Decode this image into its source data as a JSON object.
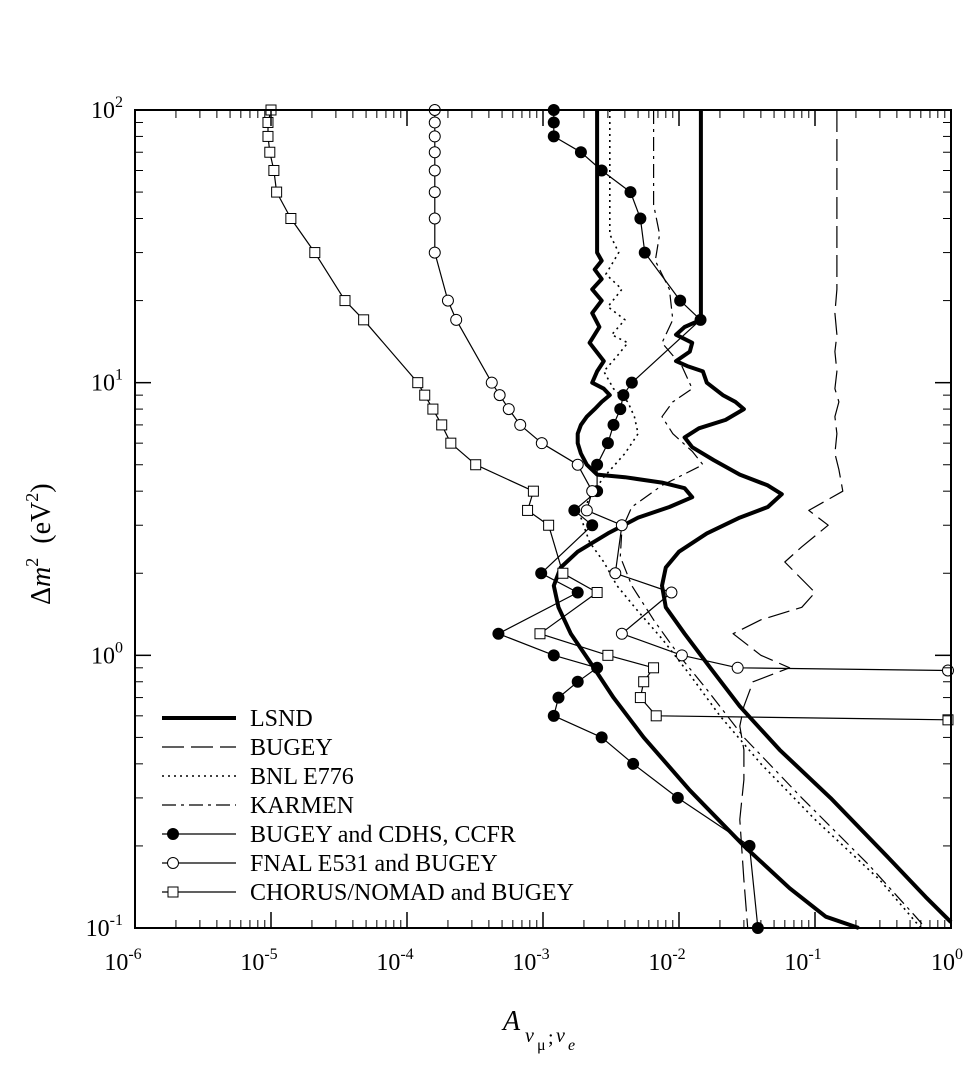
{
  "chart_data": {
    "type": "line",
    "title": "",
    "xlabel": {
      "main": "A",
      "sub_1": "ν",
      "sub_2": "μ",
      "sub_sep": ";",
      "sub_3": "ν",
      "sub_4": "e"
    },
    "ylabel": {
      "main": "Δ",
      "var": "m",
      "sup": "2",
      "units_open": "  (eV",
      "units_sup": "2",
      "units_close": ")"
    },
    "x_scale": "log",
    "y_scale": "log",
    "xlim": [
      1e-06,
      1
    ],
    "ylim": [
      0.1,
      100
    ],
    "grid": false,
    "legend_position": "bottom-left",
    "x_ticks": [
      {
        "value": 1e-06,
        "base": "10",
        "exp": "-6"
      },
      {
        "value": 1e-05,
        "base": "10",
        "exp": "-5"
      },
      {
        "value": 0.0001,
        "base": "10",
        "exp": "-4"
      },
      {
        "value": 0.001,
        "base": "10",
        "exp": "-3"
      },
      {
        "value": 0.01,
        "base": "10",
        "exp": "-2"
      },
      {
        "value": 0.1,
        "base": "10",
        "exp": "-1"
      },
      {
        "value": 1,
        "base": "10",
        "exp": "0"
      }
    ],
    "y_ticks": [
      {
        "value": 0.1,
        "base": "10",
        "exp": "-1"
      },
      {
        "value": 1,
        "base": "10",
        "exp": "0"
      },
      {
        "value": 10,
        "base": "10",
        "exp": "1"
      },
      {
        "value": 100,
        "base": "10",
        "exp": "2"
      }
    ],
    "series": [
      {
        "name": "LSND",
        "style": "thick",
        "marker": "none",
        "segments": [
          [
            [
              0.0025,
              100
            ],
            [
              0.0025,
              30
            ],
            [
              0.0027,
              28
            ],
            [
              0.0024,
              26
            ],
            [
              0.0027,
              24
            ],
            [
              0.0023,
              22
            ],
            [
              0.0027,
              20
            ],
            [
              0.0023,
              18
            ],
            [
              0.0026,
              16
            ],
            [
              0.0022,
              14
            ],
            [
              0.0028,
              12
            ],
            [
              0.0025,
              11
            ],
            [
              0.0023,
              10
            ],
            [
              0.0028,
              9.5
            ],
            [
              0.0031,
              9
            ],
            [
              0.0027,
              8.5
            ],
            [
              0.0024,
              8
            ],
            [
              0.0021,
              7.5
            ],
            [
              0.0019,
              7
            ],
            [
              0.0018,
              6.5
            ],
            [
              0.0018,
              6
            ],
            [
              0.0019,
              5.5
            ],
            [
              0.0021,
              5
            ],
            [
              0.0025,
              4.6
            ],
            [
              0.004,
              4.5
            ],
            [
              0.0075,
              4.3
            ],
            [
              0.011,
              4.1
            ],
            [
              0.0125,
              3.8
            ],
            [
              0.0085,
              3.5
            ],
            [
              0.005,
              3.2
            ],
            [
              0.003,
              2.8
            ],
            [
              0.0018,
              2.4
            ],
            [
              0.00135,
              2.1
            ],
            [
              0.0012,
              1.8
            ],
            [
              0.0013,
              1.5
            ],
            [
              0.0016,
              1.2
            ],
            [
              0.0022,
              0.95
            ],
            [
              0.0033,
              0.7
            ],
            [
              0.0055,
              0.5
            ],
            [
              0.012,
              0.32
            ],
            [
              0.03,
              0.2
            ],
            [
              0.065,
              0.14
            ],
            [
              0.12,
              0.11
            ],
            [
              0.21,
              0.1
            ]
          ],
          [
            [
              0.0145,
              100
            ],
            [
              0.0145,
              17
            ],
            [
              0.011,
              16
            ],
            [
              0.0095,
              15
            ],
            [
              0.0125,
              14
            ],
            [
              0.012,
              13
            ],
            [
              0.0095,
              12
            ],
            [
              0.0115,
              11.5
            ],
            [
              0.015,
              11
            ],
            [
              0.016,
              10
            ],
            [
              0.021,
              9
            ],
            [
              0.026,
              8.5
            ],
            [
              0.03,
              8
            ],
            [
              0.022,
              7.3
            ],
            [
              0.014,
              6.8
            ],
            [
              0.011,
              6.3
            ],
            [
              0.0125,
              5.8
            ],
            [
              0.018,
              5.2
            ],
            [
              0.028,
              4.6
            ],
            [
              0.045,
              4.2
            ],
            [
              0.057,
              3.9
            ],
            [
              0.045,
              3.5
            ],
            [
              0.028,
              3.2
            ],
            [
              0.016,
              2.8
            ],
            [
              0.01,
              2.4
            ],
            [
              0.008,
              2.1
            ],
            [
              0.0075,
              1.8
            ],
            [
              0.008,
              1.5
            ],
            [
              0.011,
              1.2
            ],
            [
              0.017,
              0.9
            ],
            [
              0.028,
              0.65
            ],
            [
              0.055,
              0.45
            ],
            [
              0.13,
              0.3
            ],
            [
              0.35,
              0.18
            ],
            [
              0.65,
              0.13
            ],
            [
              1.0,
              0.105
            ]
          ]
        ]
      },
      {
        "name": "BUGEY",
        "style": "dash-long",
        "marker": "none",
        "segments": [
          [
            [
              0.145,
              100
            ],
            [
              0.145,
              22
            ],
            [
              0.14,
              18
            ],
            [
              0.145,
              15
            ],
            [
              0.14,
              13
            ],
            [
              0.145,
              11
            ],
            [
              0.14,
              9.5
            ],
            [
              0.15,
              8.5
            ],
            [
              0.14,
              7.5
            ],
            [
              0.145,
              6.5
            ],
            [
              0.14,
              5.5
            ],
            [
              0.15,
              4.8
            ],
            [
              0.16,
              4.0
            ],
            [
              0.09,
              3.4
            ],
            [
              0.125,
              3.0
            ],
            [
              0.08,
              2.5
            ],
            [
              0.06,
              2.2
            ],
            [
              0.1,
              1.7
            ],
            [
              0.08,
              1.5
            ],
            [
              0.04,
              1.35
            ],
            [
              0.025,
              1.2
            ],
            [
              0.04,
              1.0
            ],
            [
              0.065,
              0.9
            ],
            [
              0.035,
              0.8
            ],
            [
              0.03,
              0.65
            ],
            [
              0.028,
              0.55
            ],
            [
              0.03,
              0.45
            ],
            [
              0.03,
              0.35
            ],
            [
              0.028,
              0.25
            ],
            [
              0.03,
              0.15
            ],
            [
              0.032,
              0.1
            ]
          ]
        ]
      },
      {
        "name": "BNL E776",
        "style": "dotted",
        "marker": "none",
        "segments": [
          [
            [
              0.0031,
              100
            ],
            [
              0.0031,
              35
            ],
            [
              0.0036,
              30
            ],
            [
              0.0029,
              25
            ],
            [
              0.0038,
              22
            ],
            [
              0.003,
              19
            ],
            [
              0.004,
              17
            ],
            [
              0.0032,
              15
            ],
            [
              0.0042,
              14
            ],
            [
              0.0035,
              12.5
            ],
            [
              0.0028,
              11
            ],
            [
              0.0033,
              9.5
            ],
            [
              0.0042,
              8.5
            ],
            [
              0.0047,
              7.5
            ],
            [
              0.005,
              6.5
            ],
            [
              0.004,
              5.5
            ],
            [
              0.0028,
              4.5
            ],
            [
              0.0022,
              3.8
            ],
            [
              0.0019,
              3.2
            ],
            [
              0.0022,
              2.6
            ],
            [
              0.0028,
              2.2
            ],
            [
              0.0035,
              1.8
            ],
            [
              0.005,
              1.45
            ],
            [
              0.0075,
              1.15
            ],
            [
              0.012,
              0.85
            ],
            [
              0.02,
              0.6
            ],
            [
              0.04,
              0.4
            ],
            [
              0.1,
              0.25
            ],
            [
              0.3,
              0.15
            ],
            [
              0.6,
              0.1
            ]
          ]
        ]
      },
      {
        "name": "KARMEN",
        "style": "dashdot",
        "marker": "none",
        "segments": [
          [
            [
              0.0065,
              100
            ],
            [
              0.0065,
              45
            ],
            [
              0.0072,
              35
            ],
            [
              0.0067,
              28
            ],
            [
              0.0085,
              22
            ],
            [
              0.009,
              17
            ],
            [
              0.0075,
              14
            ],
            [
              0.0105,
              11.5
            ],
            [
              0.0125,
              9.5
            ],
            [
              0.009,
              8.5
            ],
            [
              0.0075,
              7.5
            ],
            [
              0.009,
              6.5
            ],
            [
              0.0125,
              5.6
            ],
            [
              0.015,
              5.0
            ],
            [
              0.0075,
              4.2
            ],
            [
              0.0045,
              3.5
            ],
            [
              0.0038,
              2.9
            ],
            [
              0.0037,
              2.3
            ],
            [
              0.0045,
              1.8
            ],
            [
              0.0065,
              1.35
            ],
            [
              0.01,
              1.0
            ],
            [
              0.016,
              0.75
            ],
            [
              0.03,
              0.5
            ],
            [
              0.08,
              0.3
            ],
            [
              0.25,
              0.17
            ],
            [
              0.55,
              0.11
            ],
            [
              0.65,
              0.1
            ]
          ]
        ]
      },
      {
        "name": "BUGEY and CDHS, CCFR",
        "style": "solid-thin",
        "marker": "filled-circle",
        "segments": [
          [
            [
              0.0012,
              100
            ],
            [
              0.0012,
              90
            ],
            [
              0.0012,
              80
            ],
            [
              0.0019,
              70
            ],
            [
              0.0027,
              60
            ],
            [
              0.0044,
              50
            ],
            [
              0.0052,
              40
            ],
            [
              0.0056,
              30
            ],
            [
              0.0102,
              20
            ],
            [
              0.0144,
              17
            ],
            [
              0.0045,
              10
            ],
            [
              0.0039,
              9
            ],
            [
              0.0037,
              8
            ],
            [
              0.0033,
              7
            ],
            [
              0.003,
              6
            ],
            [
              0.0025,
              5
            ],
            [
              0.0025,
              4
            ],
            [
              0.0017,
              3.4
            ],
            [
              0.0023,
              3
            ],
            [
              0.00097,
              2
            ],
            [
              0.0018,
              1.7
            ],
            [
              0.00047,
              1.2
            ],
            [
              0.0012,
              1.0
            ],
            [
              0.0025,
              0.9
            ],
            [
              0.0018,
              0.8
            ],
            [
              0.0013,
              0.7
            ],
            [
              0.0012,
              0.6
            ],
            [
              0.0027,
              0.5
            ],
            [
              0.0046,
              0.4
            ],
            [
              0.0098,
              0.3
            ],
            [
              0.033,
              0.2
            ],
            [
              0.038,
              0.1
            ]
          ]
        ]
      },
      {
        "name": "FNAL E531 and BUGEY",
        "style": "solid-thin",
        "marker": "open-circle",
        "segments": [
          [
            [
              0.00016,
              100
            ],
            [
              0.00016,
              90
            ],
            [
              0.00016,
              80
            ],
            [
              0.00016,
              70
            ],
            [
              0.00016,
              60
            ],
            [
              0.00016,
              50
            ],
            [
              0.00016,
              40
            ],
            [
              0.00016,
              30
            ],
            [
              0.0002,
              20
            ],
            [
              0.00023,
              17
            ],
            [
              0.00042,
              10
            ],
            [
              0.00048,
              9
            ],
            [
              0.00056,
              8
            ],
            [
              0.00068,
              7
            ],
            [
              0.00098,
              6
            ],
            [
              0.0018,
              5
            ],
            [
              0.0023,
              4
            ],
            [
              0.0021,
              3.4
            ],
            [
              0.0038,
              3
            ],
            [
              0.0034,
              2
            ],
            [
              0.0088,
              1.7
            ],
            [
              0.0038,
              1.2
            ],
            [
              0.0105,
              1.0
            ],
            [
              0.027,
              0.9
            ],
            [
              0.95,
              0.88
            ]
          ]
        ]
      },
      {
        "name": "CHORUS/NOMAD and BUGEY",
        "style": "solid-thin",
        "marker": "open-square",
        "segments": [
          [
            [
              1e-05,
              100
            ],
            [
              9.5e-06,
              90
            ],
            [
              9.5e-06,
              80
            ],
            [
              9.8e-06,
              70
            ],
            [
              1.05e-05,
              60
            ],
            [
              1.1e-05,
              50
            ],
            [
              1.4e-05,
              40
            ],
            [
              2.1e-05,
              30
            ],
            [
              3.5e-05,
              20
            ],
            [
              4.8e-05,
              17
            ],
            [
              0.00012,
              10
            ],
            [
              0.000135,
              9
            ],
            [
              0.000155,
              8
            ],
            [
              0.00018,
              7
            ],
            [
              0.00021,
              6
            ],
            [
              0.00032,
              5
            ],
            [
              0.00085,
              4
            ],
            [
              0.00077,
              3.4
            ],
            [
              0.0011,
              3.0
            ],
            [
              0.0014,
              2.0
            ],
            [
              0.0025,
              1.7
            ],
            [
              0.00095,
              1.2
            ],
            [
              0.003,
              1.0
            ],
            [
              0.0065,
              0.9
            ],
            [
              0.0055,
              0.8
            ],
            [
              0.0052,
              0.7
            ],
            [
              0.0068,
              0.6
            ],
            [
              0.95,
              0.58
            ]
          ]
        ]
      }
    ]
  }
}
